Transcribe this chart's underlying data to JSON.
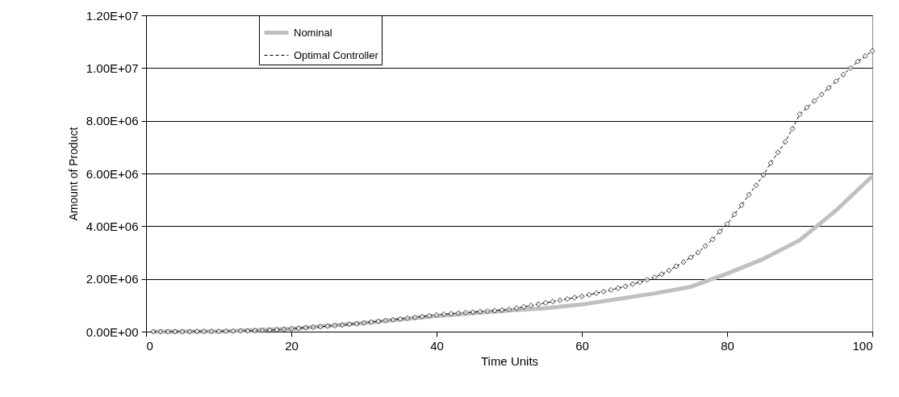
{
  "chart_data": {
    "type": "line",
    "xlabel": "Time Units",
    "ylabel": "Amount of Product",
    "xlim": [
      0,
      100
    ],
    "xticks": [
      0,
      20,
      40,
      60,
      80,
      100
    ],
    "ylim": [
      0,
      12000000
    ],
    "yticks": [
      {
        "value": 0,
        "label": "0.00E+00"
      },
      {
        "value": 2000000,
        "label": "2.00E+06"
      },
      {
        "value": 4000000,
        "label": "4.00E+06"
      },
      {
        "value": 6000000,
        "label": "6.00E+06"
      },
      {
        "value": 8000000,
        "label": "8.00E+06"
      },
      {
        "value": 10000000,
        "label": "1.00E+07"
      },
      {
        "value": 12000000,
        "label": "1.20E+07"
      }
    ],
    "grid": "y",
    "legend": "top",
    "series": [
      {
        "name": "Nominal",
        "color": "#c0c0c0",
        "line_style": "solid",
        "marker": "none",
        "x": [
          1,
          10,
          20,
          30,
          40,
          50,
          55,
          60,
          65,
          70,
          75,
          80,
          85,
          90,
          95,
          100
        ],
        "values": [
          0,
          10000,
          110000,
          330000,
          600000,
          800000,
          890000,
          1030000,
          1240000,
          1450000,
          1700000,
          2200000,
          2760000,
          3470000,
          4600000,
          5900000
        ]
      },
      {
        "name": "Optimal Controller",
        "color": "#000000",
        "line_style": "dashed",
        "marker": "diamond",
        "x": [
          1,
          2,
          3,
          4,
          5,
          6,
          7,
          8,
          9,
          10,
          11,
          12,
          13,
          14,
          15,
          16,
          17,
          18,
          19,
          20,
          21,
          22,
          23,
          24,
          25,
          26,
          27,
          28,
          29,
          30,
          31,
          32,
          33,
          34,
          35,
          36,
          37,
          38,
          39,
          40,
          41,
          42,
          43,
          44,
          45,
          46,
          47,
          48,
          49,
          50,
          51,
          52,
          53,
          54,
          55,
          56,
          57,
          58,
          59,
          60,
          61,
          62,
          63,
          64,
          65,
          66,
          67,
          68,
          69,
          70,
          71,
          72,
          73,
          74,
          75,
          76,
          77,
          78,
          79,
          80,
          81,
          82,
          83,
          84,
          85,
          86,
          87,
          88,
          89,
          90,
          91,
          92,
          93,
          94,
          95,
          96,
          97,
          98,
          99,
          100
        ],
        "values": [
          0,
          0,
          0,
          0,
          0,
          0,
          10000,
          10000,
          10000,
          10000,
          20000,
          20000,
          30000,
          30000,
          40000,
          50000,
          60000,
          70000,
          90000,
          110000,
          130000,
          150000,
          170000,
          190000,
          210000,
          230000,
          250000,
          280000,
          300000,
          330000,
          360000,
          390000,
          420000,
          450000,
          480000,
          510000,
          540000,
          570000,
          600000,
          630000,
          660000,
          680000,
          700000,
          720000,
          740000,
          760000,
          780000,
          800000,
          820000,
          840000,
          890000,
          940000,
          990000,
          1040000,
          1090000,
          1140000,
          1190000,
          1240000,
          1290000,
          1340000,
          1400000,
          1460000,
          1520000,
          1580000,
          1650000,
          1720000,
          1800000,
          1880000,
          1970000,
          2060000,
          2180000,
          2320000,
          2480000,
          2640000,
          2820000,
          3000000,
          3250000,
          3500000,
          3800000,
          4080000,
          4450000,
          4800000,
          5200000,
          5550000,
          5940000,
          6400000,
          6800000,
          7200000,
          7700000,
          8250000,
          8500000,
          8750000,
          9000000,
          9250000,
          9500000,
          9750000,
          10000000,
          10250000,
          10450000,
          10650000
        ]
      }
    ]
  }
}
